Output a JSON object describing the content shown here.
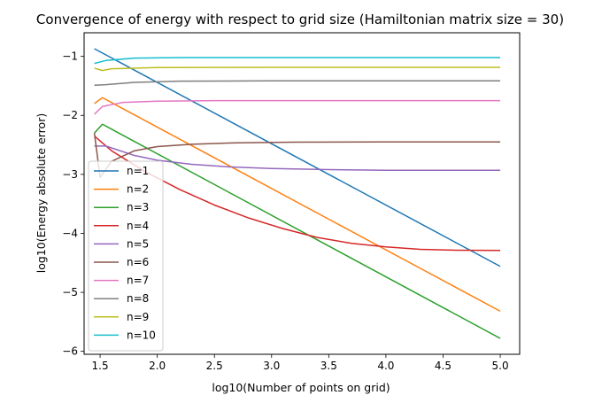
{
  "chart_data": {
    "type": "line",
    "title": "Convergence of energy with respect to grid size (Hamiltonian matrix size = 30)",
    "xlabel": "log10(Number of points on grid)",
    "ylabel": "log10(Energy absolute error)",
    "xlim": [
      1.36,
      5.17
    ],
    "ylim": [
      -6.05,
      -0.6
    ],
    "xticks": [
      1.5,
      2.0,
      2.5,
      3.0,
      3.5,
      4.0,
      4.5,
      5.0
    ],
    "xtick_labels": [
      "1.5",
      "2.0",
      "2.5",
      "3.0",
      "3.5",
      "4.0",
      "4.5",
      "5.0"
    ],
    "yticks": [
      -1,
      -2,
      -3,
      -4,
      -5,
      -6
    ],
    "ytick_labels": [
      "−1",
      "−2",
      "−3",
      "−4",
      "−5",
      "−6"
    ],
    "grid": false,
    "legend_position": "lower-left",
    "series": [
      {
        "name": "n=1",
        "color": "#1f77b4",
        "points": [
          [
            1.45,
            -0.87
          ],
          [
            5.0,
            -4.56
          ]
        ]
      },
      {
        "name": "n=2",
        "color": "#ff7f0e",
        "points": [
          [
            1.45,
            -1.8
          ],
          [
            1.52,
            -1.7
          ],
          [
            5.0,
            -5.32
          ]
        ]
      },
      {
        "name": "n=3",
        "color": "#2ca02c",
        "points": [
          [
            1.45,
            -2.3
          ],
          [
            1.52,
            -2.15
          ],
          [
            5.0,
            -5.78
          ]
        ]
      },
      {
        "name": "n=4",
        "color": "#d62728",
        "points": [
          [
            1.45,
            -2.35
          ],
          [
            1.6,
            -2.6
          ],
          [
            1.9,
            -2.96
          ],
          [
            2.2,
            -3.26
          ],
          [
            2.5,
            -3.52
          ],
          [
            2.8,
            -3.74
          ],
          [
            3.1,
            -3.92
          ],
          [
            3.4,
            -4.07
          ],
          [
            3.7,
            -4.17
          ],
          [
            4.0,
            -4.23
          ],
          [
            4.3,
            -4.27
          ],
          [
            4.6,
            -4.285
          ],
          [
            5.0,
            -4.29
          ]
        ]
      },
      {
        "name": "n=5",
        "color": "#9467bd",
        "points": [
          [
            1.45,
            -2.52
          ],
          [
            1.55,
            -2.52
          ],
          [
            1.8,
            -2.68
          ],
          [
            2.0,
            -2.76
          ],
          [
            2.3,
            -2.83
          ],
          [
            2.6,
            -2.87
          ],
          [
            3.0,
            -2.9
          ],
          [
            3.5,
            -2.92
          ],
          [
            4.0,
            -2.93
          ],
          [
            5.0,
            -2.93
          ]
        ]
      },
      {
        "name": "n=6",
        "color": "#8c564b",
        "points": [
          [
            1.45,
            -2.3
          ],
          [
            1.5,
            -3.05
          ],
          [
            1.6,
            -2.78
          ],
          [
            1.8,
            -2.6
          ],
          [
            2.0,
            -2.53
          ],
          [
            2.3,
            -2.49
          ],
          [
            2.7,
            -2.465
          ],
          [
            3.2,
            -2.455
          ],
          [
            4.0,
            -2.45
          ],
          [
            5.0,
            -2.45
          ]
        ]
      },
      {
        "name": "n=7",
        "color": "#e377c2",
        "points": [
          [
            1.45,
            -1.98
          ],
          [
            1.52,
            -1.85
          ],
          [
            1.7,
            -1.78
          ],
          [
            2.0,
            -1.76
          ],
          [
            2.5,
            -1.75
          ],
          [
            5.0,
            -1.75
          ]
        ]
      },
      {
        "name": "n=8",
        "color": "#7f7f7f",
        "points": [
          [
            1.45,
            -1.49
          ],
          [
            1.55,
            -1.48
          ],
          [
            1.8,
            -1.44
          ],
          [
            2.2,
            -1.42
          ],
          [
            3.0,
            -1.415
          ],
          [
            5.0,
            -1.415
          ]
        ]
      },
      {
        "name": "n=9",
        "color": "#bcbd22",
        "points": [
          [
            1.45,
            -1.2
          ],
          [
            1.52,
            -1.24
          ],
          [
            1.6,
            -1.21
          ],
          [
            2.0,
            -1.19
          ],
          [
            3.0,
            -1.185
          ],
          [
            5.0,
            -1.185
          ]
        ]
      },
      {
        "name": "n=10",
        "color": "#17becf",
        "points": [
          [
            1.45,
            -1.12
          ],
          [
            1.55,
            -1.07
          ],
          [
            1.8,
            -1.03
          ],
          [
            2.2,
            -1.02
          ],
          [
            5.0,
            -1.02
          ]
        ]
      }
    ]
  }
}
